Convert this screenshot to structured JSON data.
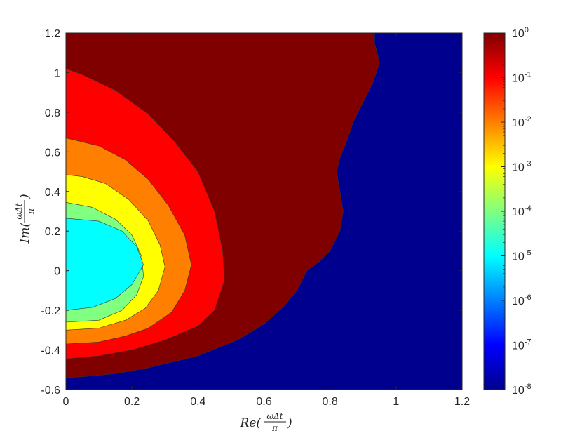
{
  "chart_data": {
    "type": "contourf",
    "xlim": [
      0,
      1.2
    ],
    "ylim": [
      -0.6,
      1.2
    ],
    "xticks": [
      "0",
      "0.2",
      "0.4",
      "0.6",
      "0.8",
      "1",
      "1.2"
    ],
    "yticks": [
      "1.2",
      "1",
      "0.8",
      "0.6",
      "0.4",
      "0.2",
      "0",
      "-0.2",
      "-0.4",
      "-0.6"
    ],
    "xlabel": {
      "prefix": "Re(",
      "num": "ωΔt",
      "den": "π",
      "suffix": ")"
    },
    "ylabel": {
      "prefix": "Im(",
      "num": "ωΔt",
      "den": "π",
      "suffix": ")"
    },
    "colorbar": {
      "scale": "log",
      "range_exponents": [
        -8,
        0
      ],
      "tick_base": "10",
      "tick_exponents": [
        "0",
        "-1",
        "-2",
        "-3",
        "-4",
        "-5",
        "-6",
        "-7",
        "-8"
      ],
      "colormap": "jet"
    },
    "regions": [
      {
        "fill": "#800000",
        "level": "10^-1 to 10^0",
        "boundary": [
          [
            0,
            -0.54
          ],
          [
            0.05,
            -0.535
          ],
          [
            0.15,
            -0.52
          ],
          [
            0.25,
            -0.49
          ],
          [
            0.4,
            -0.43
          ],
          [
            0.52,
            -0.35
          ],
          [
            0.6,
            -0.27
          ],
          [
            0.66,
            -0.18
          ],
          [
            0.7,
            -0.1
          ],
          [
            0.73,
            0.0
          ],
          [
            0.77,
            0.05
          ],
          [
            0.8,
            0.1
          ],
          [
            0.83,
            0.2
          ],
          [
            0.84,
            0.3
          ],
          [
            0.83,
            0.4
          ],
          [
            0.82,
            0.5
          ],
          [
            0.83,
            0.57
          ],
          [
            0.85,
            0.65
          ],
          [
            0.87,
            0.75
          ],
          [
            0.9,
            0.85
          ],
          [
            0.93,
            0.95
          ],
          [
            0.95,
            1.05
          ],
          [
            0.935,
            1.15
          ],
          [
            0.935,
            1.2
          ]
        ]
      },
      {
        "fill": "#ff0000",
        "level": "10^-2 to 10^-1",
        "boundary": [
          [
            0,
            -0.445
          ],
          [
            0.1,
            -0.43
          ],
          [
            0.2,
            -0.4
          ],
          [
            0.3,
            -0.35
          ],
          [
            0.4,
            -0.28
          ],
          [
            0.45,
            -0.2
          ],
          [
            0.48,
            -0.05
          ],
          [
            0.475,
            0.1
          ],
          [
            0.45,
            0.3
          ],
          [
            0.4,
            0.5
          ],
          [
            0.33,
            0.65
          ],
          [
            0.25,
            0.79
          ],
          [
            0.15,
            0.91
          ],
          [
            0.05,
            0.99
          ],
          [
            0,
            1.02
          ]
        ]
      },
      {
        "fill": "#ff8000",
        "level": "10^-3 to 10^-2",
        "boundary": [
          [
            0,
            -0.37
          ],
          [
            0.1,
            -0.36
          ],
          [
            0.18,
            -0.33
          ],
          [
            0.25,
            -0.29
          ],
          [
            0.32,
            -0.21
          ],
          [
            0.36,
            -0.1
          ],
          [
            0.38,
            0.03
          ],
          [
            0.36,
            0.18
          ],
          [
            0.31,
            0.33
          ],
          [
            0.25,
            0.46
          ],
          [
            0.18,
            0.56
          ],
          [
            0.1,
            0.63
          ],
          [
            0,
            0.67
          ]
        ]
      },
      {
        "fill": "#ffff00",
        "level": "10^-4 to 10^-3",
        "boundary": [
          [
            0,
            -0.3
          ],
          [
            0.1,
            -0.29
          ],
          [
            0.18,
            -0.25
          ],
          [
            0.24,
            -0.19
          ],
          [
            0.28,
            -0.1
          ],
          [
            0.3,
            0.02
          ],
          [
            0.285,
            0.13
          ],
          [
            0.25,
            0.25
          ],
          [
            0.19,
            0.36
          ],
          [
            0.12,
            0.44
          ],
          [
            0.05,
            0.475
          ],
          [
            0,
            0.485
          ]
        ]
      },
      {
        "fill": "#80ff80",
        "level": "10^-5 to 10^-4",
        "boundary": [
          [
            0,
            -0.26
          ],
          [
            0.1,
            -0.25
          ],
          [
            0.17,
            -0.2
          ],
          [
            0.215,
            -0.12
          ],
          [
            0.235,
            -0.03
          ],
          [
            0.23,
            0.07
          ],
          [
            0.2,
            0.18
          ],
          [
            0.15,
            0.26
          ],
          [
            0.08,
            0.32
          ],
          [
            0,
            0.345
          ]
        ]
      },
      {
        "fill": "#00ffff",
        "level": "10^-6 to 10^-5",
        "boundary": [
          [
            0,
            -0.2
          ],
          [
            0.08,
            -0.185
          ],
          [
            0.15,
            -0.14
          ],
          [
            0.2,
            -0.07
          ],
          [
            0.235,
            0.03
          ],
          [
            0.215,
            0.12
          ],
          [
            0.17,
            0.2
          ],
          [
            0.1,
            0.25
          ],
          [
            0,
            0.265
          ]
        ]
      }
    ]
  }
}
